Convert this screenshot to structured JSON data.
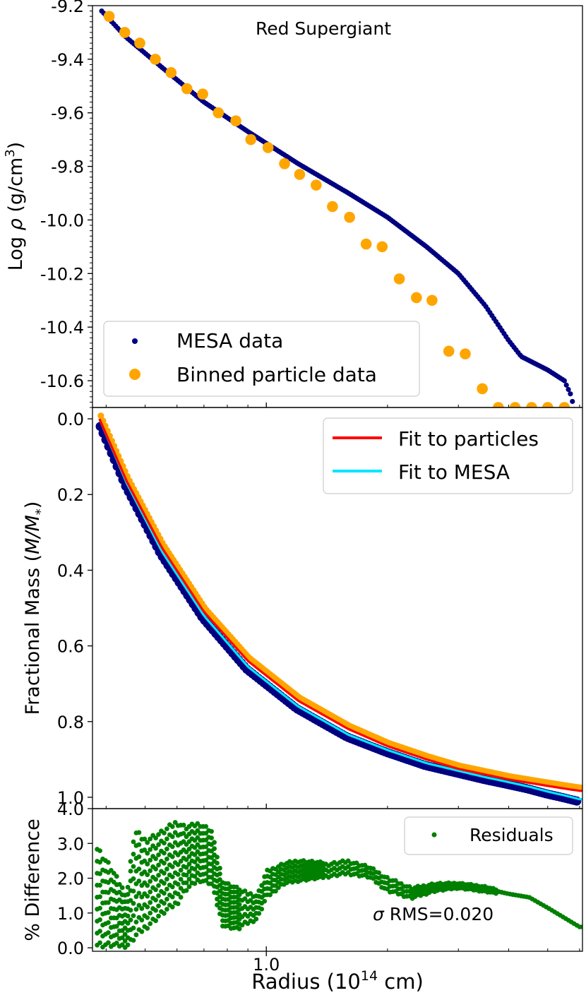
{
  "figure": {
    "xlabel": "Radius (10",
    "xlabel_sup": "14",
    "xlabel_tail": " cm)",
    "x_axis_scale": "log",
    "x_tick_labels": [
      "1.0"
    ],
    "x_range": [
      0.37,
      6.1
    ]
  },
  "colors": {
    "mesa": "#000080",
    "binned": "#ffa500",
    "fit_particles": "#ff0000",
    "fit_mesa": "#00e5ff",
    "residuals": "#008000"
  },
  "chart_data": [
    {
      "type": "scatter",
      "panel": "top",
      "title": "Red Supergiant",
      "ylabel_pre": "Log ",
      "ylabel_sym": "ρ",
      "ylabel_post": " (g/cm",
      "ylabel_sup": "3",
      "ylabel_end": ")",
      "ylim": [
        -10.7,
        -9.2
      ],
      "yticks": [
        -9.2,
        -9.4,
        -9.6,
        -9.8,
        -10.0,
        -10.2,
        -10.4,
        -10.6
      ],
      "ytick_labels": [
        "-9.2",
        "-9.4",
        "-9.6",
        "-9.8",
        "-10.0",
        "-10.2",
        "-10.4",
        "-10.6"
      ],
      "legend": {
        "placement": "lower-left",
        "entries": [
          "MESA data",
          "Binned particle data"
        ]
      },
      "mesa_curve": {
        "x": [
          0.39,
          0.45,
          0.55,
          0.7,
          0.9,
          1.2,
          1.6,
          2.0,
          2.5,
          3.0,
          3.5,
          4.0,
          4.3,
          5.0,
          5.5,
          5.9
        ],
        "y": [
          -9.22,
          -9.32,
          -9.43,
          -9.56,
          -9.67,
          -9.79,
          -9.9,
          -9.99,
          -10.1,
          -10.2,
          -10.32,
          -10.45,
          -10.51,
          -10.56,
          -10.6,
          -10.7
        ]
      },
      "series": [
        {
          "name": "Binned particle data",
          "x": [
            0.407,
            0.445,
            0.485,
            0.53,
            0.58,
            0.635,
            0.695,
            0.76,
            0.84,
            0.915,
            1.01,
            1.11,
            1.21,
            1.33,
            1.46,
            1.61,
            1.77,
            1.94,
            2.14,
            2.36,
            2.58,
            2.84,
            3.12,
            3.44,
            3.77,
            4.15,
            4.56,
            5.0,
            5.5
          ],
          "y": [
            -9.24,
            -9.3,
            -9.34,
            -9.4,
            -9.45,
            -9.51,
            -9.53,
            -9.6,
            -9.63,
            -9.7,
            -9.73,
            -9.79,
            -9.83,
            -9.87,
            -9.95,
            -9.99,
            -10.09,
            -10.1,
            -10.22,
            -10.29,
            -10.3,
            -10.49,
            -10.5,
            -10.63,
            -10.7,
            -10.7,
            -10.7,
            -10.7,
            -10.7
          ]
        }
      ]
    },
    {
      "type": "line",
      "panel": "middle",
      "ylabel_pre": "Fractional Mass (",
      "ylabel_math": "M/M",
      "ylabel_sub": "*",
      "ylabel_end": ")",
      "ylim": [
        1.03,
        -0.03
      ],
      "y_inverted": true,
      "yticks": [
        0.0,
        0.2,
        0.4,
        0.6,
        0.8,
        1.0
      ],
      "ytick_labels": [
        "0.0",
        "0.2",
        "0.4",
        "0.6",
        "0.8",
        "1.0"
      ],
      "legend": {
        "placement": "top-right",
        "entries": [
          "Fit to particles",
          "Fit to MESA"
        ]
      },
      "series": [
        {
          "name": "Fit to particles",
          "x": [
            0.385,
            0.45,
            0.55,
            0.7,
            0.9,
            1.2,
            1.6,
            2.0,
            2.5,
            3.0,
            3.5,
            4.0,
            4.5,
            5.0,
            5.5,
            6.0
          ],
          "y": [
            0.0,
            0.165,
            0.34,
            0.51,
            0.64,
            0.745,
            0.82,
            0.865,
            0.9,
            0.925,
            0.94,
            0.953,
            0.962,
            0.97,
            0.977,
            0.983
          ]
        },
        {
          "name": "Fit to MESA",
          "x": [
            0.385,
            0.45,
            0.55,
            0.7,
            0.9,
            1.2,
            1.6,
            2.0,
            2.5,
            3.0,
            3.5,
            4.0,
            4.5,
            5.0,
            5.5,
            6.0
          ],
          "y": [
            0.0,
            0.17,
            0.35,
            0.52,
            0.655,
            0.76,
            0.835,
            0.875,
            0.91,
            0.93,
            0.947,
            0.96,
            0.972,
            0.985,
            0.995,
            1.005
          ]
        }
      ]
    },
    {
      "type": "scatter",
      "panel": "bottom",
      "ylabel": "% Difference",
      "ylim": [
        -0.1,
        4.0
      ],
      "yticks": [
        0.0,
        1.0,
        2.0,
        3.0,
        4.0
      ],
      "ytick_labels": [
        "0.0",
        "1.0",
        "2.0",
        "3.0",
        "4.0"
      ],
      "legend": {
        "placement": "top-right",
        "entries": [
          "Residuals"
        ]
      },
      "annotation": {
        "sym": "σ",
        "text": " RMS=0.020"
      },
      "envelope": {
        "x": [
          0.38,
          0.41,
          0.45,
          0.47,
          0.5,
          0.55,
          0.6,
          0.63,
          0.68,
          0.73,
          0.78,
          0.85,
          0.95,
          1.0,
          1.1,
          1.2,
          1.4,
          1.6,
          1.8,
          2.0,
          2.3,
          2.6,
          3.0,
          3.5,
          4.0,
          4.5,
          5.0,
          6.0
        ],
        "hi": [
          3.1,
          2.5,
          1.6,
          3.6,
          3.3,
          3.5,
          3.8,
          3.6,
          3.7,
          3.5,
          2.0,
          1.8,
          1.6,
          2.3,
          2.5,
          2.6,
          2.5,
          2.6,
          2.4,
          2.1,
          1.8,
          1.9,
          1.9,
          1.8,
          1.6,
          1.5,
          1.2,
          0.6
        ],
        "lo": [
          0.0,
          0.0,
          0.0,
          0.2,
          0.5,
          0.9,
          1.2,
          1.6,
          1.9,
          1.8,
          0.6,
          0.5,
          0.8,
          1.4,
          1.8,
          1.9,
          2.0,
          2.1,
          2.0,
          1.6,
          1.4,
          1.6,
          1.7,
          1.6,
          1.5,
          1.4,
          1.1,
          0.6
        ]
      }
    }
  ]
}
